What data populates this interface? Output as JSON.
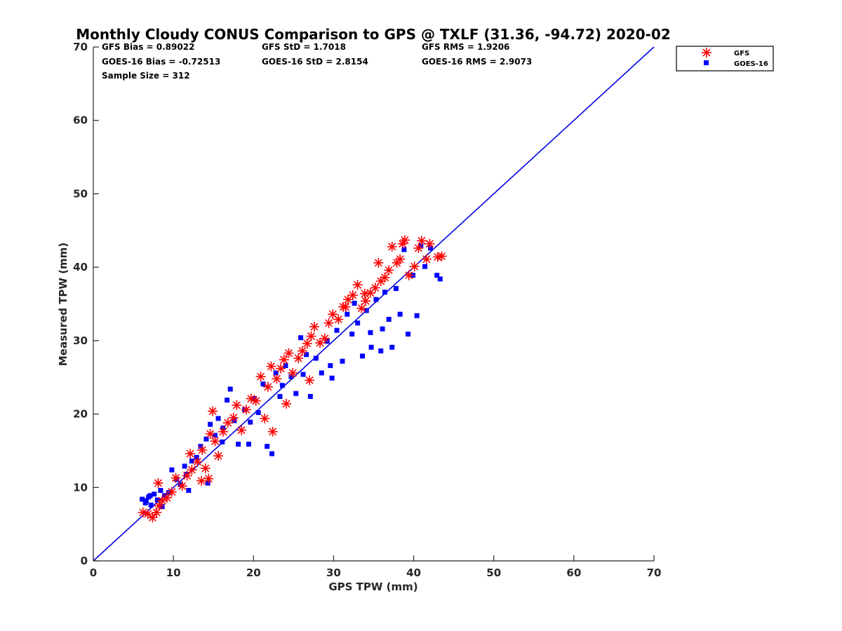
{
  "chart_data": {
    "type": "scatter",
    "title": "Monthly Cloudy CONUS Comparison to GPS @ TXLF (31.36, -94.72) 2020-02",
    "xlabel": "GPS TPW (mm)",
    "ylabel": "Measured TPW (mm)",
    "xlim": [
      0,
      70
    ],
    "ylim": [
      0,
      70
    ],
    "xticks": [
      0,
      10,
      20,
      30,
      40,
      50,
      60,
      70
    ],
    "yticks": [
      0,
      10,
      20,
      30,
      40,
      50,
      60,
      70
    ],
    "grid": false,
    "legend_position": "top-right",
    "stats": [
      "GFS Bias = 0.89022",
      "GFS StD = 1.7018",
      "GFS RMS = 1.9206",
      "GOES-16 Bias = -0.72513",
      "GOES-16 StD = 2.8154",
      "GOES-16 RMS = 2.9073",
      "Sample Size = 312"
    ],
    "reference_line": {
      "x": [
        0,
        70
      ],
      "y": [
        0,
        70
      ],
      "color": "#0000e6"
    },
    "series": [
      {
        "name": "GFS",
        "marker": "asterisk",
        "color": "#ff0000",
        "points": [
          [
            6.2,
            6.6
          ],
          [
            6.8,
            6.4
          ],
          [
            7.4,
            5.9
          ],
          [
            7.9,
            6.6
          ],
          [
            8.2,
            7.5
          ],
          [
            8.6,
            8.2
          ],
          [
            9.2,
            8.6
          ],
          [
            9.8,
            9.4
          ],
          [
            8.1,
            10.6
          ],
          [
            10.3,
            11.3
          ],
          [
            11.1,
            10.2
          ],
          [
            11.7,
            11.6
          ],
          [
            12.3,
            12.4
          ],
          [
            12.1,
            14.6
          ],
          [
            13.0,
            13.5
          ],
          [
            13.6,
            15.1
          ],
          [
            14.0,
            12.6
          ],
          [
            14.4,
            11.2
          ],
          [
            13.5,
            10.9
          ],
          [
            14.6,
            17.3
          ],
          [
            14.9,
            20.4
          ],
          [
            15.2,
            16.3
          ],
          [
            15.6,
            14.3
          ],
          [
            16.2,
            17.6
          ],
          [
            16.8,
            18.8
          ],
          [
            17.5,
            19.5
          ],
          [
            17.9,
            21.2
          ],
          [
            18.5,
            17.8
          ],
          [
            19.1,
            20.6
          ],
          [
            19.7,
            22.1
          ],
          [
            20.3,
            21.8
          ],
          [
            20.9,
            25.1
          ],
          [
            21.4,
            19.4
          ],
          [
            21.8,
            23.7
          ],
          [
            22.2,
            26.5
          ],
          [
            22.4,
            17.6
          ],
          [
            22.9,
            24.8
          ],
          [
            23.4,
            26.2
          ],
          [
            23.8,
            27.4
          ],
          [
            24.1,
            21.4
          ],
          [
            24.4,
            28.3
          ],
          [
            24.9,
            25.6
          ],
          [
            25.6,
            27.6
          ],
          [
            26.1,
            28.6
          ],
          [
            26.7,
            29.6
          ],
          [
            27.2,
            30.6
          ],
          [
            27.6,
            31.9
          ],
          [
            28.3,
            29.7
          ],
          [
            28.9,
            30.3
          ],
          [
            29.4,
            32.4
          ],
          [
            29.9,
            33.6
          ],
          [
            30.6,
            32.9
          ],
          [
            31.2,
            34.6
          ],
          [
            31.8,
            35.6
          ],
          [
            32.4,
            36.2
          ],
          [
            33.0,
            37.6
          ],
          [
            33.5,
            34.4
          ],
          [
            34.0,
            35.4
          ],
          [
            34.6,
            36.5
          ],
          [
            35.2,
            37.2
          ],
          [
            35.9,
            38.1
          ],
          [
            36.4,
            38.6
          ],
          [
            36.9,
            39.6
          ],
          [
            37.3,
            42.8
          ],
          [
            37.9,
            40.6
          ],
          [
            38.3,
            41.1
          ],
          [
            38.6,
            43.2
          ],
          [
            38.9,
            43.7
          ],
          [
            39.4,
            38.9
          ],
          [
            40.1,
            40.1
          ],
          [
            40.6,
            42.6
          ],
          [
            41.0,
            43.6
          ],
          [
            41.6,
            41.1
          ],
          [
            42.0,
            43.2
          ],
          [
            43.0,
            41.4
          ],
          [
            43.5,
            41.5
          ],
          [
            35.6,
            40.6
          ],
          [
            33.9,
            36.4
          ],
          [
            31.5,
            34.6
          ],
          [
            27.0,
            24.6
          ]
        ]
      },
      {
        "name": "GOES-16",
        "marker": "square",
        "color": "#0000ff",
        "points": [
          [
            6.1,
            8.4
          ],
          [
            6.5,
            7.9
          ],
          [
            6.9,
            8.7
          ],
          [
            7.2,
            7.6
          ],
          [
            7.6,
            9.1
          ],
          [
            8.0,
            8.3
          ],
          [
            8.4,
            9.6
          ],
          [
            8.9,
            8.9
          ],
          [
            9.4,
            9.3
          ],
          [
            9.8,
            12.4
          ],
          [
            10.4,
            11.1
          ],
          [
            10.9,
            10.4
          ],
          [
            11.4,
            12.9
          ],
          [
            11.9,
            9.6
          ],
          [
            12.3,
            13.6
          ],
          [
            12.9,
            14.1
          ],
          [
            13.4,
            15.6
          ],
          [
            14.1,
            16.6
          ],
          [
            14.6,
            18.6
          ],
          [
            15.2,
            17.1
          ],
          [
            15.6,
            19.4
          ],
          [
            16.2,
            18.1
          ],
          [
            16.7,
            21.9
          ],
          [
            17.1,
            23.4
          ],
          [
            17.6,
            19.1
          ],
          [
            18.1,
            15.9
          ],
          [
            18.9,
            20.6
          ],
          [
            19.4,
            15.9
          ],
          [
            20.1,
            22.1
          ],
          [
            20.6,
            20.2
          ],
          [
            21.2,
            24.1
          ],
          [
            21.7,
            15.6
          ],
          [
            22.3,
            14.6
          ],
          [
            22.8,
            25.6
          ],
          [
            23.3,
            22.4
          ],
          [
            24.0,
            26.6
          ],
          [
            24.7,
            25.1
          ],
          [
            25.3,
            22.8
          ],
          [
            25.9,
            30.4
          ],
          [
            26.6,
            28.1
          ],
          [
            27.1,
            22.4
          ],
          [
            27.8,
            27.6
          ],
          [
            28.5,
            25.6
          ],
          [
            29.2,
            29.9
          ],
          [
            29.8,
            24.9
          ],
          [
            30.4,
            31.4
          ],
          [
            31.1,
            27.2
          ],
          [
            31.7,
            33.6
          ],
          [
            32.3,
            30.9
          ],
          [
            33.0,
            32.4
          ],
          [
            33.6,
            27.9
          ],
          [
            34.1,
            34.1
          ],
          [
            34.7,
            29.1
          ],
          [
            35.3,
            35.6
          ],
          [
            35.9,
            28.6
          ],
          [
            36.4,
            36.6
          ],
          [
            36.9,
            32.9
          ],
          [
            37.3,
            29.1
          ],
          [
            37.8,
            37.1
          ],
          [
            38.3,
            33.6
          ],
          [
            38.8,
            42.4
          ],
          [
            39.3,
            30.9
          ],
          [
            39.9,
            38.9
          ],
          [
            40.4,
            33.4
          ],
          [
            40.9,
            42.9
          ],
          [
            41.4,
            40.1
          ],
          [
            42.1,
            42.6
          ],
          [
            42.9,
            38.9
          ],
          [
            43.3,
            38.4
          ],
          [
            36.1,
            31.6
          ],
          [
            34.6,
            31.1
          ],
          [
            32.6,
            35.1
          ],
          [
            29.6,
            26.6
          ],
          [
            26.2,
            25.4
          ],
          [
            23.6,
            23.9
          ],
          [
            19.6,
            18.9
          ],
          [
            16.1,
            16.2
          ],
          [
            14.3,
            10.6
          ],
          [
            11.6,
            11.8
          ],
          [
            8.6,
            7.4
          ],
          [
            7.1,
            8.9
          ],
          [
            6.6,
            8.2
          ]
        ]
      }
    ]
  }
}
